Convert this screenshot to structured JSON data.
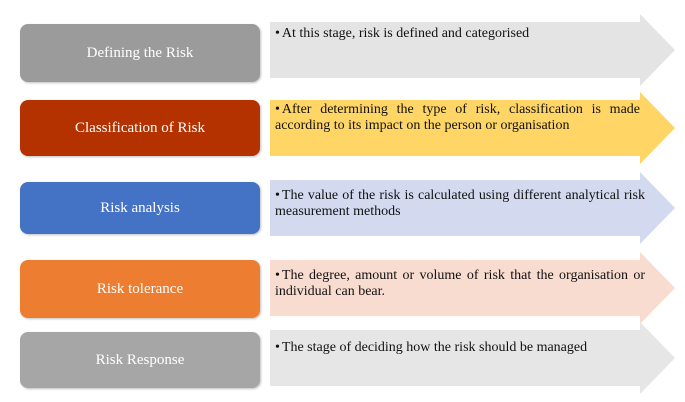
{
  "stages": [
    {
      "label": "Defining the Risk",
      "description": "At this stage, risk is defined and categorised",
      "box_color": "#9b9b9b",
      "arrow_color": "#e4e4e4",
      "text_color": "#ffffff"
    },
    {
      "label": "Classification of Risk",
      "description": "After determining the type of risk, classification is made according to its impact on the person or organisation",
      "box_color": "#b33200",
      "arrow_color": "#ffd666",
      "text_color": "#ffffff"
    },
    {
      "label": "Risk analysis",
      "description": "The value of the risk is calculated using different analytical risk measurement methods",
      "box_color": "#4472c4",
      "arrow_color": "#d3daf0",
      "text_color": "#ffffff"
    },
    {
      "label": "Risk tolerance",
      "description": "The degree, amount or volume of risk that the organisation or individual can bear.",
      "box_color": "#ed7d31",
      "arrow_color": "#f8dccf",
      "text_color": "#ffffff"
    },
    {
      "label": "Risk Response",
      "description": "The stage of deciding how the risk should be managed",
      "box_color": "#a6a6a6",
      "arrow_color": "#e6e6e6",
      "text_color": "#ffffff"
    }
  ],
  "bullet_symbol": "•"
}
